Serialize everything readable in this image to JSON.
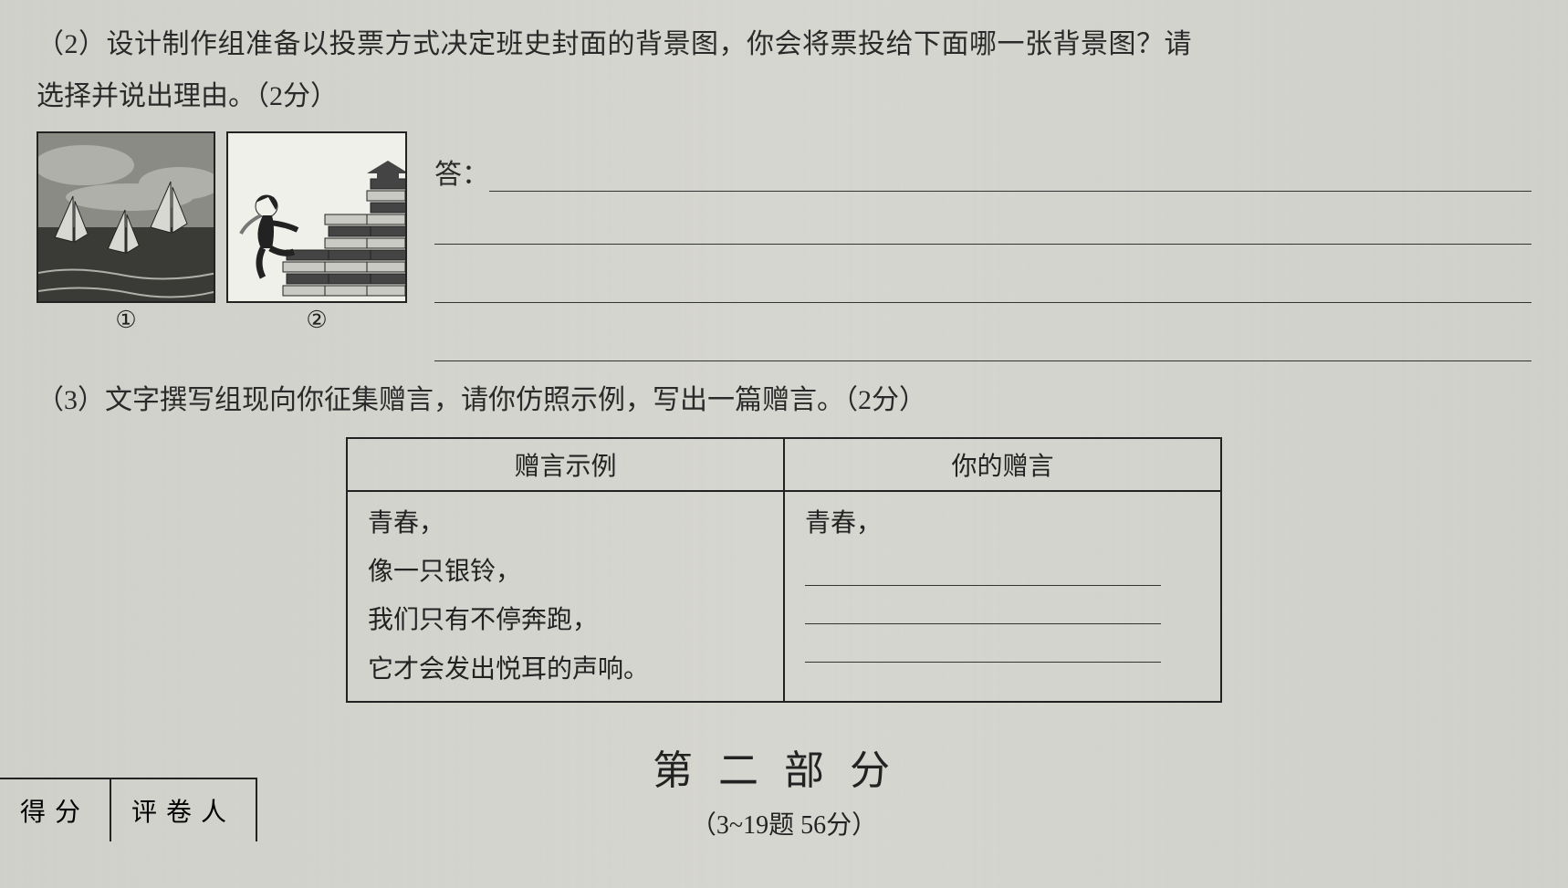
{
  "q2": {
    "prefix": "（2）设计制作组准备以投票方式决定班史封面的背景图，你会将票投给下面哪一张背景图？请",
    "line2": "选择并说出理由。（2分）",
    "img1_label": "①",
    "img2_label": "②",
    "answer_label": "答："
  },
  "q3": {
    "text": "（3）文字撰写组现向你征集赠言，请你仿照示例，写出一篇赠言。（2分）",
    "table": {
      "header_left": "赠言示例",
      "header_right": "你的赠言",
      "left_lines": [
        "青春，",
        "像一只银铃，",
        "我们只有不停奔跑，",
        "它才会发出悦耳的声响。"
      ],
      "right_start": "青春，"
    }
  },
  "part2": {
    "title": "第二部分",
    "sub": "（3~19题  56分）"
  },
  "score": {
    "c1": "得分",
    "c2": "评卷人"
  },
  "imgstyle": {
    "img1_w": 196,
    "img1_h": 188,
    "img2_w": 198,
    "img2_h": 188,
    "sky_color": "#8b8b86",
    "sea_color": "#3a3a36",
    "cloud_color": "#b0b0aa",
    "sail_fill": "#d8d8d2",
    "book_fill": "#cacac4",
    "book_dark": "#444",
    "person_dark": "#222",
    "white": "#f0f0ea"
  }
}
